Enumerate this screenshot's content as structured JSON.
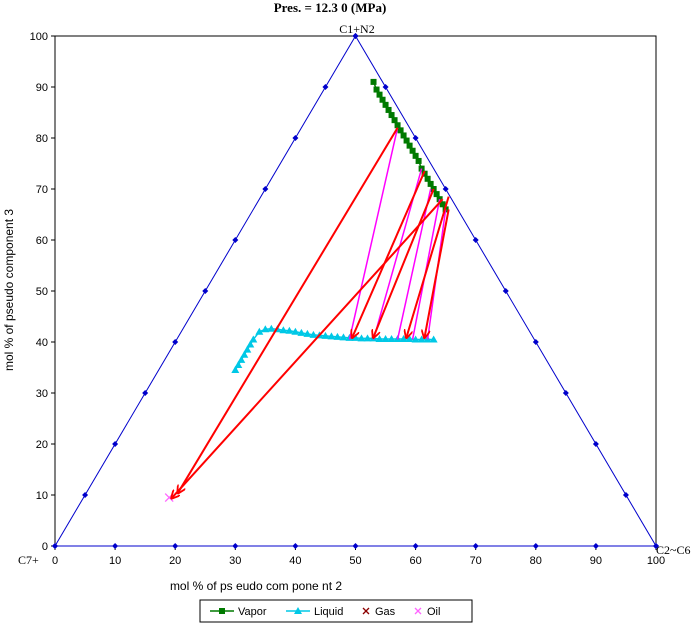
{
  "chart_data": {
    "type": "scatter",
    "title": "Pres. = 12.3 0 (MPa)",
    "xlabel": "mol % of ps eudo com pone nt 2",
    "ylabel": "mol % of pseudo component 3",
    "xlim": [
      0,
      100
    ],
    "ylim": [
      0,
      100
    ],
    "x_ticks": [
      "0",
      "10",
      "20",
      "30",
      "40",
      "50",
      "60",
      "70",
      "80",
      "90",
      "100"
    ],
    "y_ticks": [
      "0",
      "10",
      "20",
      "30",
      "40",
      "50",
      "60",
      "70",
      "80",
      "90",
      "100"
    ],
    "vertex_labels": {
      "top": "C1+N2",
      "left": "C7+",
      "right": "C2~C6"
    },
    "colors": {
      "frame": "#0000CC",
      "vapor": "#007A00",
      "liquid": "#00C8E6",
      "tie_magenta": "#FF00FF",
      "tie_red": "#FF0000",
      "gas": "#8B0000",
      "oil": "#FF66FF"
    },
    "legend": {
      "position": "bottom",
      "entries": [
        {
          "label": "Vapor",
          "marker": "square"
        },
        {
          "label": "Liquid",
          "marker": "triangle"
        },
        {
          "label": "Gas",
          "marker": "x"
        },
        {
          "label": "Oil",
          "marker": "x"
        }
      ]
    },
    "series": [
      {
        "name": "Vapor",
        "x": [
          53,
          53.5,
          54,
          54.5,
          55,
          55.5,
          56,
          56.5,
          57,
          57.5,
          58,
          58.5,
          59,
          59.5,
          60,
          60.5,
          61,
          61.5,
          62,
          62.5,
          63,
          63.5,
          64,
          64.5,
          65
        ],
        "y": [
          91,
          89.5,
          88.5,
          87.5,
          86.5,
          85.5,
          84.5,
          83.5,
          82.5,
          81.5,
          80.5,
          79.5,
          78.5,
          77.5,
          76.5,
          75.5,
          74,
          73,
          72,
          71,
          70,
          69,
          68,
          67,
          66
        ]
      },
      {
        "name": "Liquid",
        "x": [
          30,
          30.5,
          31,
          31.5,
          32,
          32.5,
          33,
          34,
          35,
          36,
          37,
          38,
          39,
          40,
          41,
          42,
          43,
          44,
          45,
          46,
          47,
          48,
          49,
          50,
          51,
          52,
          53,
          54,
          55,
          56,
          57,
          58,
          59,
          60,
          61,
          62,
          63
        ],
        "y": [
          34.5,
          35.5,
          36.5,
          37.5,
          38.5,
          39.5,
          40.5,
          42,
          42.5,
          42.6,
          42.5,
          42.3,
          42.2,
          42,
          41.8,
          41.6,
          41.4,
          41.3,
          41.2,
          41.1,
          41,
          40.9,
          40.8,
          40.8,
          40.7,
          40.7,
          40.7,
          40.6,
          40.6,
          40.6,
          40.6,
          40.6,
          40.6,
          40.5,
          40.5,
          40.5,
          40.5
        ]
      },
      {
        "name": "Gas",
        "x": [],
        "y": []
      },
      {
        "name": "Oil",
        "x": [
          19
        ],
        "y": [
          9.5
        ]
      }
    ],
    "tie_lines": [
      {
        "from": [
          57,
          82
        ],
        "to": [
          49,
          40.5
        ]
      },
      {
        "from": [
          61,
          74
        ],
        "to": [
          53,
          40.5
        ]
      },
      {
        "from": [
          62.5,
          70
        ],
        "to": [
          57,
          40.5
        ]
      },
      {
        "from": [
          64,
          68
        ],
        "to": [
          59.5,
          40.5
        ]
      },
      {
        "from": [
          65,
          66
        ],
        "to": [
          62,
          40.5
        ]
      }
    ],
    "arrows": [
      {
        "from": [
          57,
          82
        ],
        "to": [
          20.5,
          10.5
        ]
      },
      {
        "from": [
          61.5,
          73.5
        ],
        "to": [
          49.5,
          41
        ]
      },
      {
        "from": [
          63,
          70
        ],
        "to": [
          53,
          41
        ]
      },
      {
        "from": [
          64.5,
          68
        ],
        "to": [
          19.5,
          9.5
        ]
      },
      {
        "from": [
          65.5,
          68.5
        ],
        "to": [
          58.5,
          41
        ]
      },
      {
        "from": [
          65.5,
          66
        ],
        "to": [
          61.5,
          41
        ]
      }
    ]
  }
}
